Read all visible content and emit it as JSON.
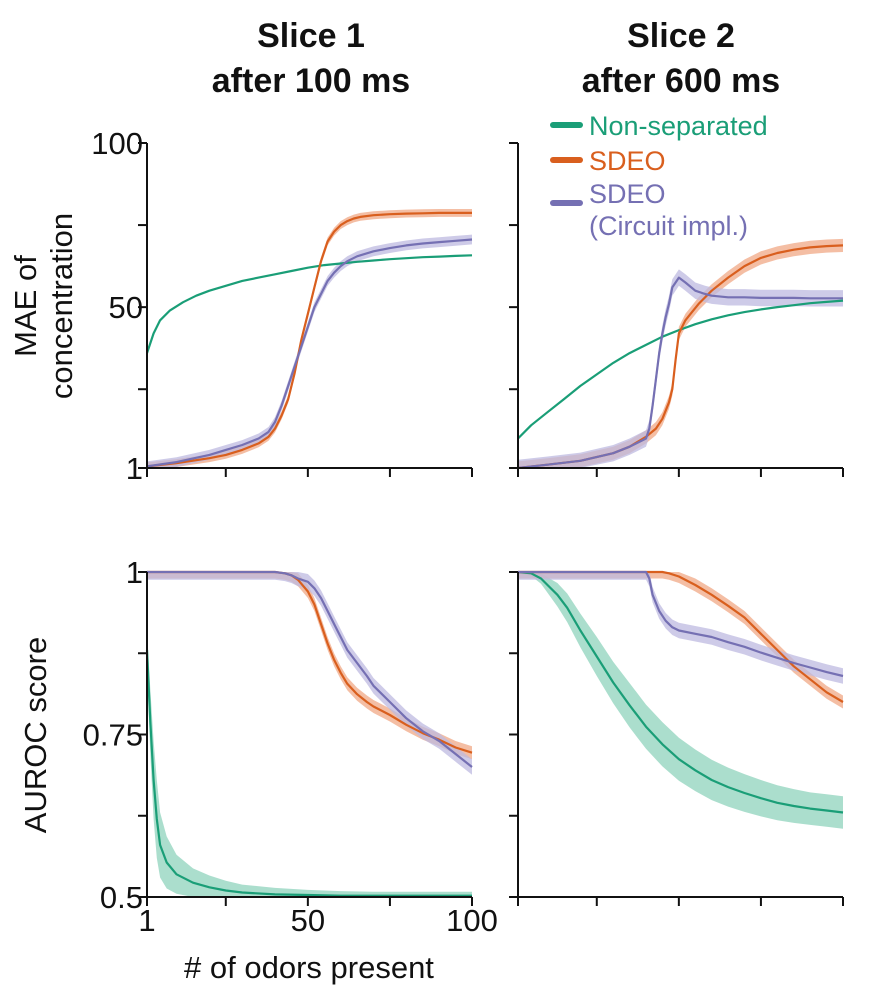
{
  "colors": {
    "nonsep": "#1a9e77",
    "sdeo": "#d95f1e",
    "circuit": "#7570b3",
    "band_nonsep": "#8fd3bc",
    "band_sdeo": "#f0a886",
    "band_circuit": "#bdb9e0"
  },
  "titles": {
    "col1": {
      "line1": "Slice 1",
      "line2": "after 100 ms"
    },
    "col2": {
      "line1": "Slice 2",
      "line2": "after 600 ms"
    }
  },
  "ylabels": {
    "mae": {
      "line1": "MAE of",
      "line2": "concentration"
    },
    "auroc": "AUROC score"
  },
  "xlabel": "# of odors present",
  "legend": [
    {
      "label": "Non-separated",
      "color": "#1a9e77"
    },
    {
      "label": "SDEO",
      "color": "#d95f1e"
    },
    {
      "label": "SDEO",
      "label2": "(Circuit impl.)",
      "color": "#7570b3"
    }
  ],
  "chart_data": [
    {
      "id": "mae_slice1",
      "type": "line",
      "title": "Slice 1 after 100 ms",
      "xlabel": "# of odors present",
      "ylabel": "MAE of concentration",
      "xlim": [
        1,
        100
      ],
      "ylim": [
        1,
        100
      ],
      "xticks": [
        1,
        25,
        50,
        75,
        100
      ],
      "xticklabels": [
        "1",
        "",
        "50",
        "",
        "100"
      ],
      "yticks": [
        1,
        25,
        50,
        75,
        100
      ],
      "yticklabels": [
        "1",
        "",
        "50",
        "",
        "100"
      ],
      "series": [
        {
          "name": "Non-separated",
          "x": [
            1,
            3,
            5,
            8,
            12,
            16,
            20,
            25,
            30,
            35,
            40,
            45,
            50,
            55,
            60,
            65,
            70,
            75,
            80,
            85,
            90,
            95,
            100
          ],
          "values": [
            36,
            42,
            46,
            49,
            51.5,
            53.5,
            55,
            56.5,
            58,
            59,
            60,
            61,
            62,
            62.8,
            63.3,
            63.8,
            64.2,
            64.6,
            64.9,
            65.2,
            65.4,
            65.6,
            65.8
          ]
        },
        {
          "name": "SDEO",
          "x": [
            1,
            10,
            20,
            25,
            30,
            35,
            38,
            40,
            42,
            44,
            46,
            48,
            50,
            52,
            54,
            56,
            58,
            60,
            62,
            64,
            66,
            70,
            75,
            80,
            85,
            90,
            95,
            100
          ],
          "values": [
            1.5,
            2.5,
            4,
            5,
            6.5,
            8.5,
            10.5,
            13,
            17,
            22,
            30,
            40,
            48,
            56,
            64,
            70,
            73,
            75,
            76.2,
            77,
            77.5,
            78,
            78.3,
            78.5,
            78.6,
            78.7,
            78.7,
            78.7
          ],
          "band": 1.2
        },
        {
          "name": "SDEO (Circuit impl.)",
          "x": [
            1,
            10,
            20,
            25,
            30,
            35,
            38,
            40,
            42,
            44,
            46,
            48,
            50,
            52,
            54,
            56,
            58,
            60,
            62,
            65,
            70,
            75,
            80,
            85,
            90,
            95,
            100
          ],
          "values": [
            1.5,
            2.8,
            5,
            6.5,
            8,
            10,
            12,
            15,
            20,
            26,
            32,
            38,
            44,
            50,
            54,
            58,
            60.5,
            62.5,
            64,
            65.5,
            67,
            68,
            68.8,
            69.4,
            69.8,
            70.2,
            70.6
          ],
          "band": 1.5
        }
      ]
    },
    {
      "id": "mae_slice2",
      "type": "line",
      "title": "Slice 2 after 600 ms",
      "xlim": [
        1,
        100
      ],
      "ylim": [
        1,
        100
      ],
      "xticks": [
        1,
        25,
        50,
        75,
        100
      ],
      "yticks": [
        1,
        25,
        50,
        75,
        100
      ],
      "series": [
        {
          "name": "Non-separated",
          "x": [
            1,
            5,
            10,
            15,
            20,
            25,
            30,
            35,
            40,
            45,
            50,
            55,
            60,
            65,
            70,
            75,
            80,
            85,
            90,
            95,
            100
          ],
          "values": [
            10,
            14,
            18,
            22,
            26,
            29.5,
            33,
            36,
            38.5,
            41,
            43,
            44.8,
            46.3,
            47.5,
            48.5,
            49.3,
            50,
            50.6,
            51.2,
            51.6,
            52
          ]
        },
        {
          "name": "SDEO",
          "x": [
            1,
            10,
            20,
            30,
            35,
            40,
            43,
            45,
            47,
            48,
            49,
            50,
            52,
            54,
            56,
            60,
            65,
            70,
            75,
            80,
            85,
            90,
            95,
            100
          ],
          "values": [
            1,
            2,
            3.2,
            5.5,
            7.5,
            10.5,
            13,
            16,
            21,
            25,
            34,
            42,
            46,
            48.5,
            51,
            55,
            59,
            62.5,
            65,
            66.5,
            67.5,
            68.2,
            68.6,
            68.8
          ],
          "band": 2
        },
        {
          "name": "SDEO (Circuit impl.)",
          "x": [
            1,
            10,
            20,
            30,
            35,
            40,
            41,
            42,
            43,
            44,
            45,
            46,
            47,
            48,
            50,
            52,
            55,
            58,
            60,
            65,
            70,
            75,
            80,
            85,
            90,
            95,
            100
          ],
          "values": [
            1,
            2,
            3.2,
            5.5,
            7.5,
            10,
            13,
            20,
            28,
            36,
            42,
            47,
            51,
            56,
            59,
            57.5,
            55,
            54,
            53.5,
            53,
            53,
            52.8,
            52.8,
            52.8,
            52.7,
            52.7,
            52.7
          ],
          "band": 2.5
        }
      ]
    },
    {
      "id": "auroc_slice1",
      "type": "line",
      "xlabel": "# of odors present",
      "ylabel": "AUROC score",
      "xlim": [
        1,
        100
      ],
      "ylim": [
        0.5,
        1
      ],
      "xticks": [
        1,
        25,
        50,
        75,
        100
      ],
      "xticklabels": [
        "1",
        "",
        "50",
        "",
        "100"
      ],
      "yticks": [
        0.5,
        0.625,
        0.75,
        0.875,
        1
      ],
      "yticklabels": [
        "0.5",
        "",
        "0.75",
        "",
        "1"
      ],
      "series": [
        {
          "name": "Non-separated",
          "x": [
            1,
            2,
            3,
            4,
            5,
            7,
            10,
            15,
            20,
            25,
            30,
            40,
            50,
            60,
            70,
            80,
            90,
            100
          ],
          "values": [
            0.88,
            0.77,
            0.68,
            0.62,
            0.58,
            0.553,
            0.535,
            0.522,
            0.515,
            0.51,
            0.507,
            0.504,
            0.503,
            0.502,
            0.502,
            0.502,
            0.502,
            0.502
          ],
          "band_values": [
            0.03,
            0.05,
            0.06,
            0.06,
            0.05,
            0.04,
            0.03,
            0.022,
            0.018,
            0.015,
            0.012,
            0.01,
            0.008,
            0.007,
            0.006,
            0.006,
            0.006,
            0.006
          ]
        },
        {
          "name": "SDEO",
          "x": [
            1,
            10,
            20,
            30,
            40,
            43,
            45,
            47,
            50,
            52,
            54,
            56,
            58,
            60,
            62,
            65,
            68,
            70,
            75,
            80,
            85,
            90,
            95,
            100
          ],
          "values": [
            1,
            1,
            1,
            1,
            1,
            0.998,
            0.995,
            0.988,
            0.97,
            0.95,
            0.92,
            0.89,
            0.865,
            0.845,
            0.828,
            0.812,
            0.8,
            0.793,
            0.78,
            0.765,
            0.752,
            0.742,
            0.73,
            0.722
          ],
          "band": 0.01
        },
        {
          "name": "SDEO (Circuit impl.)",
          "x": [
            1,
            10,
            20,
            30,
            40,
            43,
            45,
            47,
            50,
            52,
            54,
            56,
            58,
            60,
            62,
            65,
            68,
            70,
            75,
            80,
            85,
            90,
            95,
            100
          ],
          "values": [
            1,
            1,
            1,
            1,
            1,
            0.998,
            0.995,
            0.99,
            0.985,
            0.975,
            0.96,
            0.94,
            0.92,
            0.9,
            0.88,
            0.86,
            0.84,
            0.825,
            0.8,
            0.775,
            0.755,
            0.74,
            0.72,
            0.7
          ],
          "band": 0.012
        }
      ]
    },
    {
      "id": "auroc_slice2",
      "type": "line",
      "xlim": [
        1,
        100
      ],
      "ylim": [
        0.5,
        1
      ],
      "xticks": [
        1,
        25,
        50,
        75,
        100
      ],
      "yticks": [
        0.5,
        0.625,
        0.75,
        0.875,
        1
      ],
      "series": [
        {
          "name": "Non-separated",
          "x": [
            1,
            5,
            8,
            10,
            13,
            16,
            20,
            25,
            30,
            35,
            40,
            45,
            50,
            55,
            60,
            65,
            70,
            75,
            80,
            85,
            90,
            95,
            100
          ],
          "values": [
            1,
            0.998,
            0.99,
            0.98,
            0.965,
            0.945,
            0.91,
            0.87,
            0.83,
            0.795,
            0.762,
            0.735,
            0.712,
            0.695,
            0.68,
            0.669,
            0.66,
            0.652,
            0.645,
            0.64,
            0.636,
            0.633,
            0.63
          ],
          "band_values": [
            0.002,
            0.004,
            0.008,
            0.012,
            0.018,
            0.022,
            0.026,
            0.03,
            0.032,
            0.034,
            0.034,
            0.034,
            0.033,
            0.032,
            0.031,
            0.03,
            0.029,
            0.028,
            0.027,
            0.026,
            0.025,
            0.025,
            0.025
          ]
        },
        {
          "name": "SDEO",
          "x": [
            1,
            10,
            20,
            30,
            40,
            45,
            47,
            50,
            55,
            60,
            65,
            70,
            75,
            80,
            85,
            90,
            95,
            100
          ],
          "values": [
            1,
            1,
            1,
            1,
            1,
            1,
            0.998,
            0.993,
            0.98,
            0.965,
            0.948,
            0.93,
            0.905,
            0.88,
            0.855,
            0.835,
            0.815,
            0.8
          ],
          "band": 0.01
        },
        {
          "name": "SDEO (Circuit impl.)",
          "x": [
            1,
            10,
            20,
            30,
            40,
            41,
            42,
            44,
            46,
            48,
            50,
            55,
            60,
            65,
            70,
            75,
            80,
            85,
            90,
            95,
            100
          ],
          "values": [
            1,
            1,
            1,
            1,
            1,
            0.99,
            0.965,
            0.94,
            0.925,
            0.915,
            0.91,
            0.905,
            0.9,
            0.892,
            0.885,
            0.876,
            0.868,
            0.86,
            0.853,
            0.846,
            0.84
          ],
          "band": 0.012
        }
      ]
    }
  ]
}
